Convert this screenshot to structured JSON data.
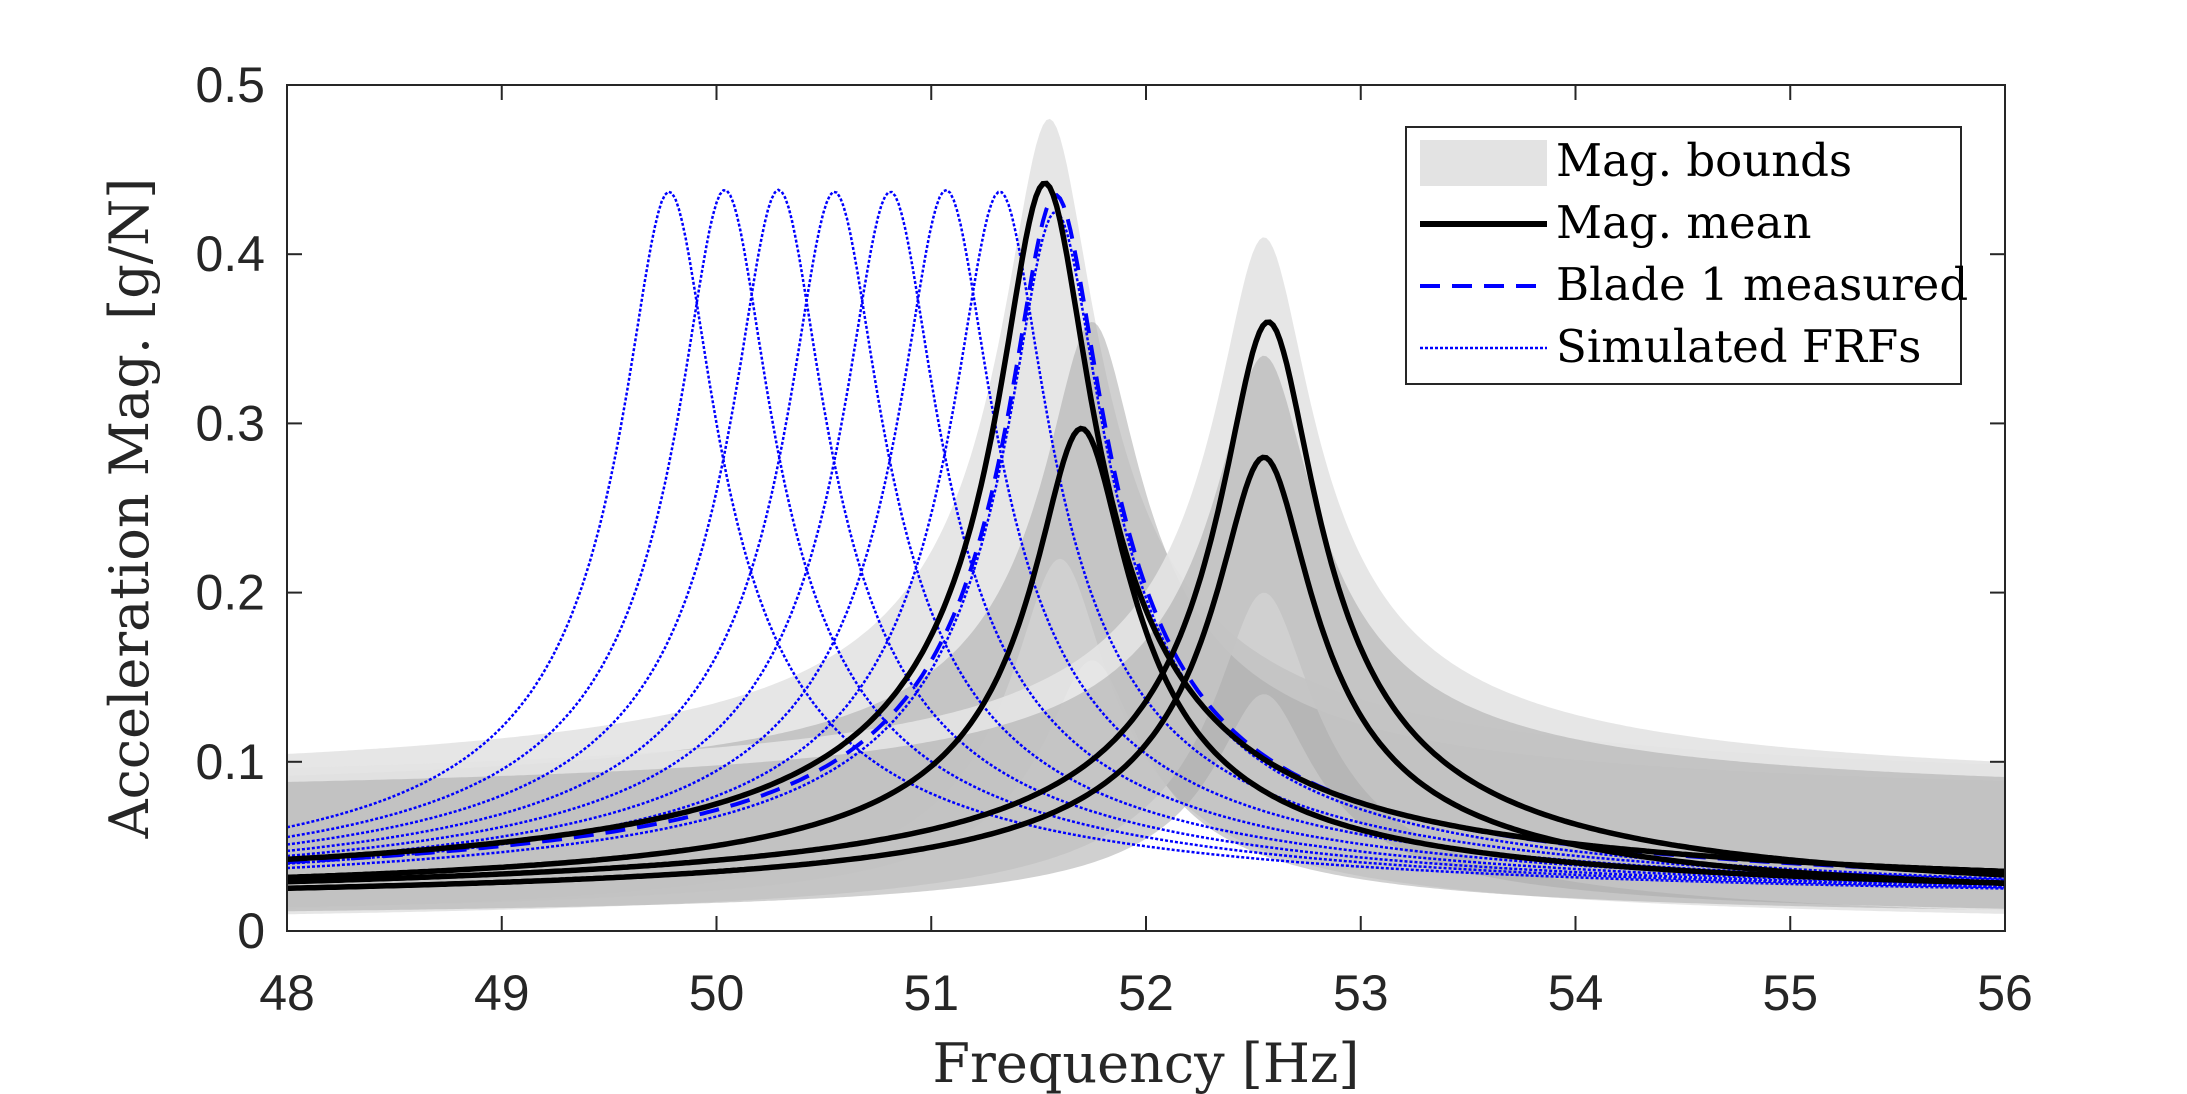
{
  "colors": {
    "bounds_light": "#e3e3e3",
    "bounds_dark": "#a9a9a9",
    "mean": "#000000",
    "measured": "#0000ff",
    "simulated": "#0000ff",
    "axis": "#262626"
  },
  "chart_data": {
    "type": "line",
    "title": "",
    "xlabel": "Frequency [Hz]",
    "ylabel": "Acceleration Mag. [g/N]",
    "xlim": [
      48,
      56
    ],
    "ylim": [
      0,
      0.5
    ],
    "xticks": [
      48,
      49,
      50,
      51,
      52,
      53,
      54,
      55,
      56
    ],
    "xtick_labels": [
      "48",
      "49",
      "50",
      "51",
      "52",
      "53",
      "54",
      "55",
      "56"
    ],
    "yticks": [
      0,
      0.1,
      0.2,
      0.3,
      0.4,
      0.5
    ],
    "ytick_labels": [
      "0",
      "0.1",
      "0.2",
      "0.3",
      "0.4",
      "0.5"
    ],
    "grid": false,
    "legend": {
      "location": "top-right",
      "entries": [
        {
          "label": "Mag. bounds",
          "style": "patch"
        },
        {
          "label": "Mag. mean",
          "style": "solid"
        },
        {
          "label": "Blade 1 measured",
          "style": "dashed"
        },
        {
          "label": "Simulated FRFs",
          "style": "dotted"
        }
      ]
    },
    "bounds_bands": [
      {
        "name": "Mag. bounds band 1 (light)",
        "shade": "light",
        "peak_freq": 51.55,
        "lower_peak": 0.22,
        "upper_peak": 0.48,
        "lower_base": 0.0,
        "upper_base": 0.08,
        "lower_peak_freq": 51.6
      },
      {
        "name": "Mag. bounds band 2 (dark)",
        "shade": "dark",
        "peak_freq": 51.75,
        "lower_peak": 0.16,
        "upper_peak": 0.36,
        "lower_base": 0.005,
        "upper_base": 0.075,
        "lower_peak_freq": 51.75
      },
      {
        "name": "Mag. bounds band 3 (light)",
        "shade": "light",
        "peak_freq": 52.55,
        "lower_peak": 0.2,
        "upper_peak": 0.41,
        "lower_base": 0.0,
        "upper_base": 0.08,
        "lower_peak_freq": 52.55
      },
      {
        "name": "Mag. bounds band 4 (dark)",
        "shade": "dark",
        "peak_freq": 52.55,
        "lower_peak": 0.14,
        "upper_peak": 0.34,
        "lower_base": 0.005,
        "upper_base": 0.075,
        "lower_peak_freq": 52.55
      }
    ],
    "mean_curves": [
      {
        "name": "Mag. mean 1",
        "peak_freq": 51.53,
        "peak": 0.442,
        "baseline": 0.016
      },
      {
        "name": "Mag. mean 2",
        "peak_freq": 51.7,
        "peak": 0.297,
        "baseline": 0.015
      },
      {
        "name": "Mag. mean 3",
        "peak_freq": 52.57,
        "peak": 0.36,
        "baseline": 0.012
      },
      {
        "name": "Mag. mean 4",
        "peak_freq": 52.55,
        "peak": 0.28,
        "baseline": 0.012
      }
    ],
    "measured_curve": {
      "name": "Blade 1 measured",
      "peak_freq": 51.58,
      "peak": 0.435,
      "baseline": 0.015
    },
    "simulated_curves": [
      {
        "name": "Simulated FRF 1",
        "peak_freq": 49.78,
        "peak": 0.437,
        "baseline": 0.012
      },
      {
        "name": "Simulated FRF 2",
        "peak_freq": 50.04,
        "peak": 0.438,
        "baseline": 0.012
      },
      {
        "name": "Simulated FRF 3",
        "peak_freq": 50.29,
        "peak": 0.438,
        "baseline": 0.012
      },
      {
        "name": "Simulated FRF 4",
        "peak_freq": 50.55,
        "peak": 0.437,
        "baseline": 0.012
      },
      {
        "name": "Simulated FRF 5",
        "peak_freq": 50.81,
        "peak": 0.437,
        "baseline": 0.012
      },
      {
        "name": "Simulated FRF 6",
        "peak_freq": 51.07,
        "peak": 0.438,
        "baseline": 0.012
      },
      {
        "name": "Simulated FRF 7",
        "peak_freq": 51.32,
        "peak": 0.437,
        "baseline": 0.012
      },
      {
        "name": "Simulated FRF 8",
        "peak_freq": 51.58,
        "peak": 0.425,
        "baseline": 0.012
      }
    ]
  }
}
